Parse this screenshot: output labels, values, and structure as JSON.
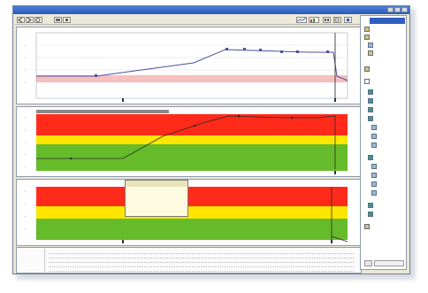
{
  "window": {
    "title": "",
    "title_bar_color": "#2f5fbf"
  },
  "toolbar": {
    "buttons": [
      "back-icon",
      "forward-icon",
      "zoom-icon",
      "print-icon",
      "settings-icon",
      "graph-icon",
      "chart-icon",
      "help-icon"
    ]
  },
  "chart_top": {
    "caption": "",
    "series": [
      {
        "color": "#4b4f9b"
      },
      {
        "color": "#e06060"
      }
    ]
  },
  "chart_mid": {
    "caption": "",
    "zone_colors": {
      "red": "#ff2a1a",
      "yellow": "#ffe600",
      "green": "#66bb2a"
    }
  },
  "chart_bottom": {
    "caption": ""
  },
  "tooltip": {
    "lines": [
      "",
      "",
      "",
      ""
    ]
  },
  "tree": {
    "selected_label": "",
    "items": [
      "",
      "",
      "",
      "",
      "",
      "",
      "",
      "",
      "",
      "",
      "",
      "",
      "",
      "",
      "",
      "",
      "",
      "",
      "",
      "",
      ""
    ]
  },
  "table": {
    "footer": ""
  }
}
